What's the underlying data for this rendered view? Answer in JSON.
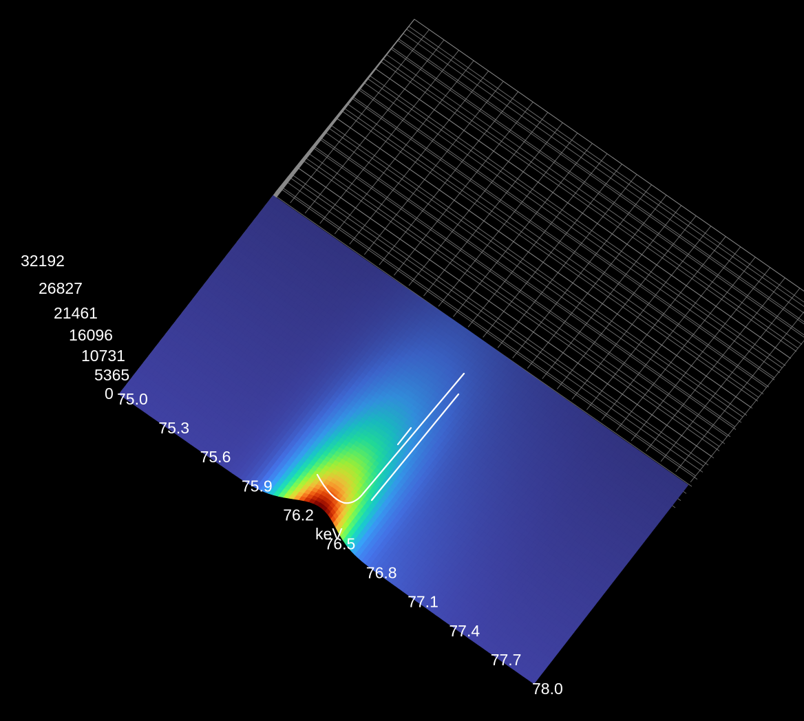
{
  "chart_data": {
    "type": "surface3d",
    "title": "",
    "colorscale": [
      "#30123b",
      "#4145ab",
      "#4675ed",
      "#39a2fc",
      "#1bcfd4",
      "#24eca6",
      "#61fc6c",
      "#a4fc3b",
      "#d1e834",
      "#f3c63a",
      "#fe9b2d",
      "#f36315",
      "#d93806",
      "#b11901",
      "#7a0402"
    ],
    "x_axis": {
      "label": "keV",
      "ticks": [
        "75.0",
        "75.3",
        "75.6",
        "75.9",
        "76.2",
        "76.5",
        "76.8",
        "77.1",
        "77.4",
        "77.7",
        "78.0"
      ],
      "range": [
        75.0,
        78.0
      ]
    },
    "z_axis": {
      "label": "",
      "ticks": [
        "0",
        "5365",
        "10731",
        "16096",
        "21461",
        "26827",
        "32192"
      ],
      "range": [
        0,
        32192
      ]
    },
    "y_axis": {
      "label": "",
      "ticks": [],
      "range": [
        0,
        1
      ]
    },
    "surface": {
      "peak_energy_kev": 76.35,
      "peak_counts": 32192,
      "baseline_counts": 1200,
      "peak_width_kev": 0.22
    },
    "grid": true,
    "background": "#000000"
  }
}
